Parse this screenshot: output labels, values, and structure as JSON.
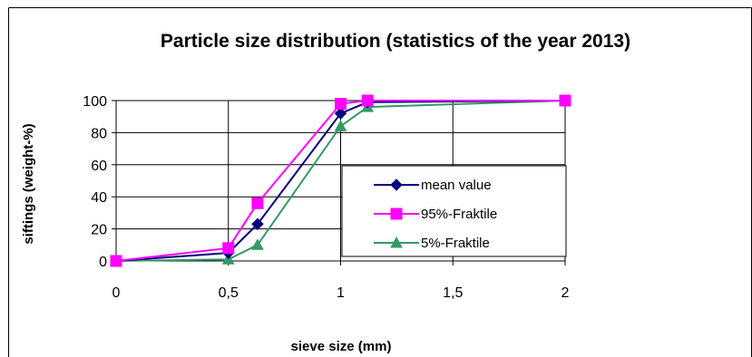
{
  "chart_data": {
    "type": "line",
    "title": "Particle size distribution (statistics of the year 2013)",
    "xlabel": "sieve size (mm)",
    "ylabel": "siftings (weight-%)",
    "xlim": [
      0,
      2
    ],
    "ylim": [
      0,
      100
    ],
    "x_ticks": [
      "0",
      "0,5",
      "1",
      "1,5",
      "2"
    ],
    "x_tick_values": [
      0,
      0.5,
      1,
      1.5,
      2
    ],
    "y_ticks": [
      "0",
      "20",
      "40",
      "60",
      "80",
      "100"
    ],
    "y_tick_values": [
      0,
      20,
      40,
      60,
      80,
      100
    ],
    "grid": true,
    "legend_position": "lower-right",
    "series": [
      {
        "name": "mean value",
        "color": "#000080",
        "marker": "diamond",
        "points": [
          [
            0,
            0
          ],
          [
            0.5,
            5
          ],
          [
            0.63,
            23
          ],
          [
            1,
            92
          ],
          [
            1.12,
            99
          ],
          [
            2,
            100
          ]
        ]
      },
      {
        "name": "95%-Fraktile",
        "color": "#ff00ff",
        "marker": "square",
        "points": [
          [
            0,
            0
          ],
          [
            0.5,
            8
          ],
          [
            0.63,
            36
          ],
          [
            1,
            98
          ],
          [
            1.12,
            100
          ],
          [
            2,
            100
          ]
        ]
      },
      {
        "name": "5%-Fraktile",
        "color": "#339966",
        "marker": "triangle",
        "points": [
          [
            0,
            0
          ],
          [
            0.5,
            1
          ],
          [
            0.63,
            10
          ],
          [
            1,
            84
          ],
          [
            1.12,
            96
          ],
          [
            2,
            100
          ]
        ]
      }
    ]
  }
}
